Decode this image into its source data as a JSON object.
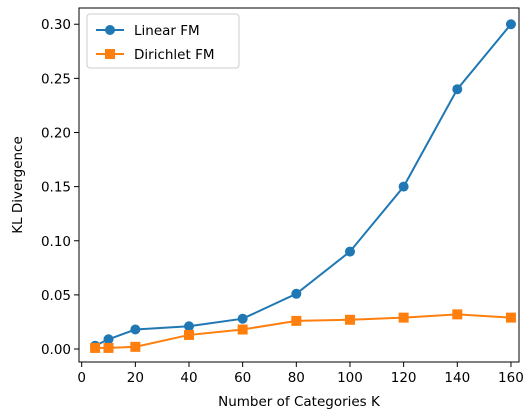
{
  "chart_data": {
    "type": "line",
    "title": "",
    "xlabel": "Number of Categories K",
    "ylabel": "KL Divergence",
    "xlim": [
      -1,
      163
    ],
    "ylim": [
      -0.012,
      0.315
    ],
    "xticks": [
      0,
      20,
      40,
      60,
      80,
      100,
      120,
      140,
      160
    ],
    "yticks": [
      0.0,
      0.05,
      0.1,
      0.15,
      0.2,
      0.25,
      0.3
    ],
    "ytick_labels": [
      "0.00",
      "0.05",
      "0.10",
      "0.15",
      "0.20",
      "0.25",
      "0.30"
    ],
    "grid": false,
    "legend": "top-left",
    "series": [
      {
        "name": "Linear FM",
        "color": "#1f77b4",
        "marker": "circle",
        "x": [
          5,
          10,
          20,
          40,
          60,
          80,
          100,
          120,
          140,
          160
        ],
        "y": [
          0.003,
          0.009,
          0.018,
          0.021,
          0.028,
          0.051,
          0.09,
          0.15,
          0.24,
          0.3
        ]
      },
      {
        "name": "Dirichlet FM",
        "color": "#ff7f0e",
        "marker": "square",
        "x": [
          5,
          10,
          20,
          40,
          60,
          80,
          100,
          120,
          140,
          160
        ],
        "y": [
          0.001,
          0.001,
          0.002,
          0.013,
          0.018,
          0.026,
          0.027,
          0.029,
          0.032,
          0.029
        ]
      }
    ]
  }
}
